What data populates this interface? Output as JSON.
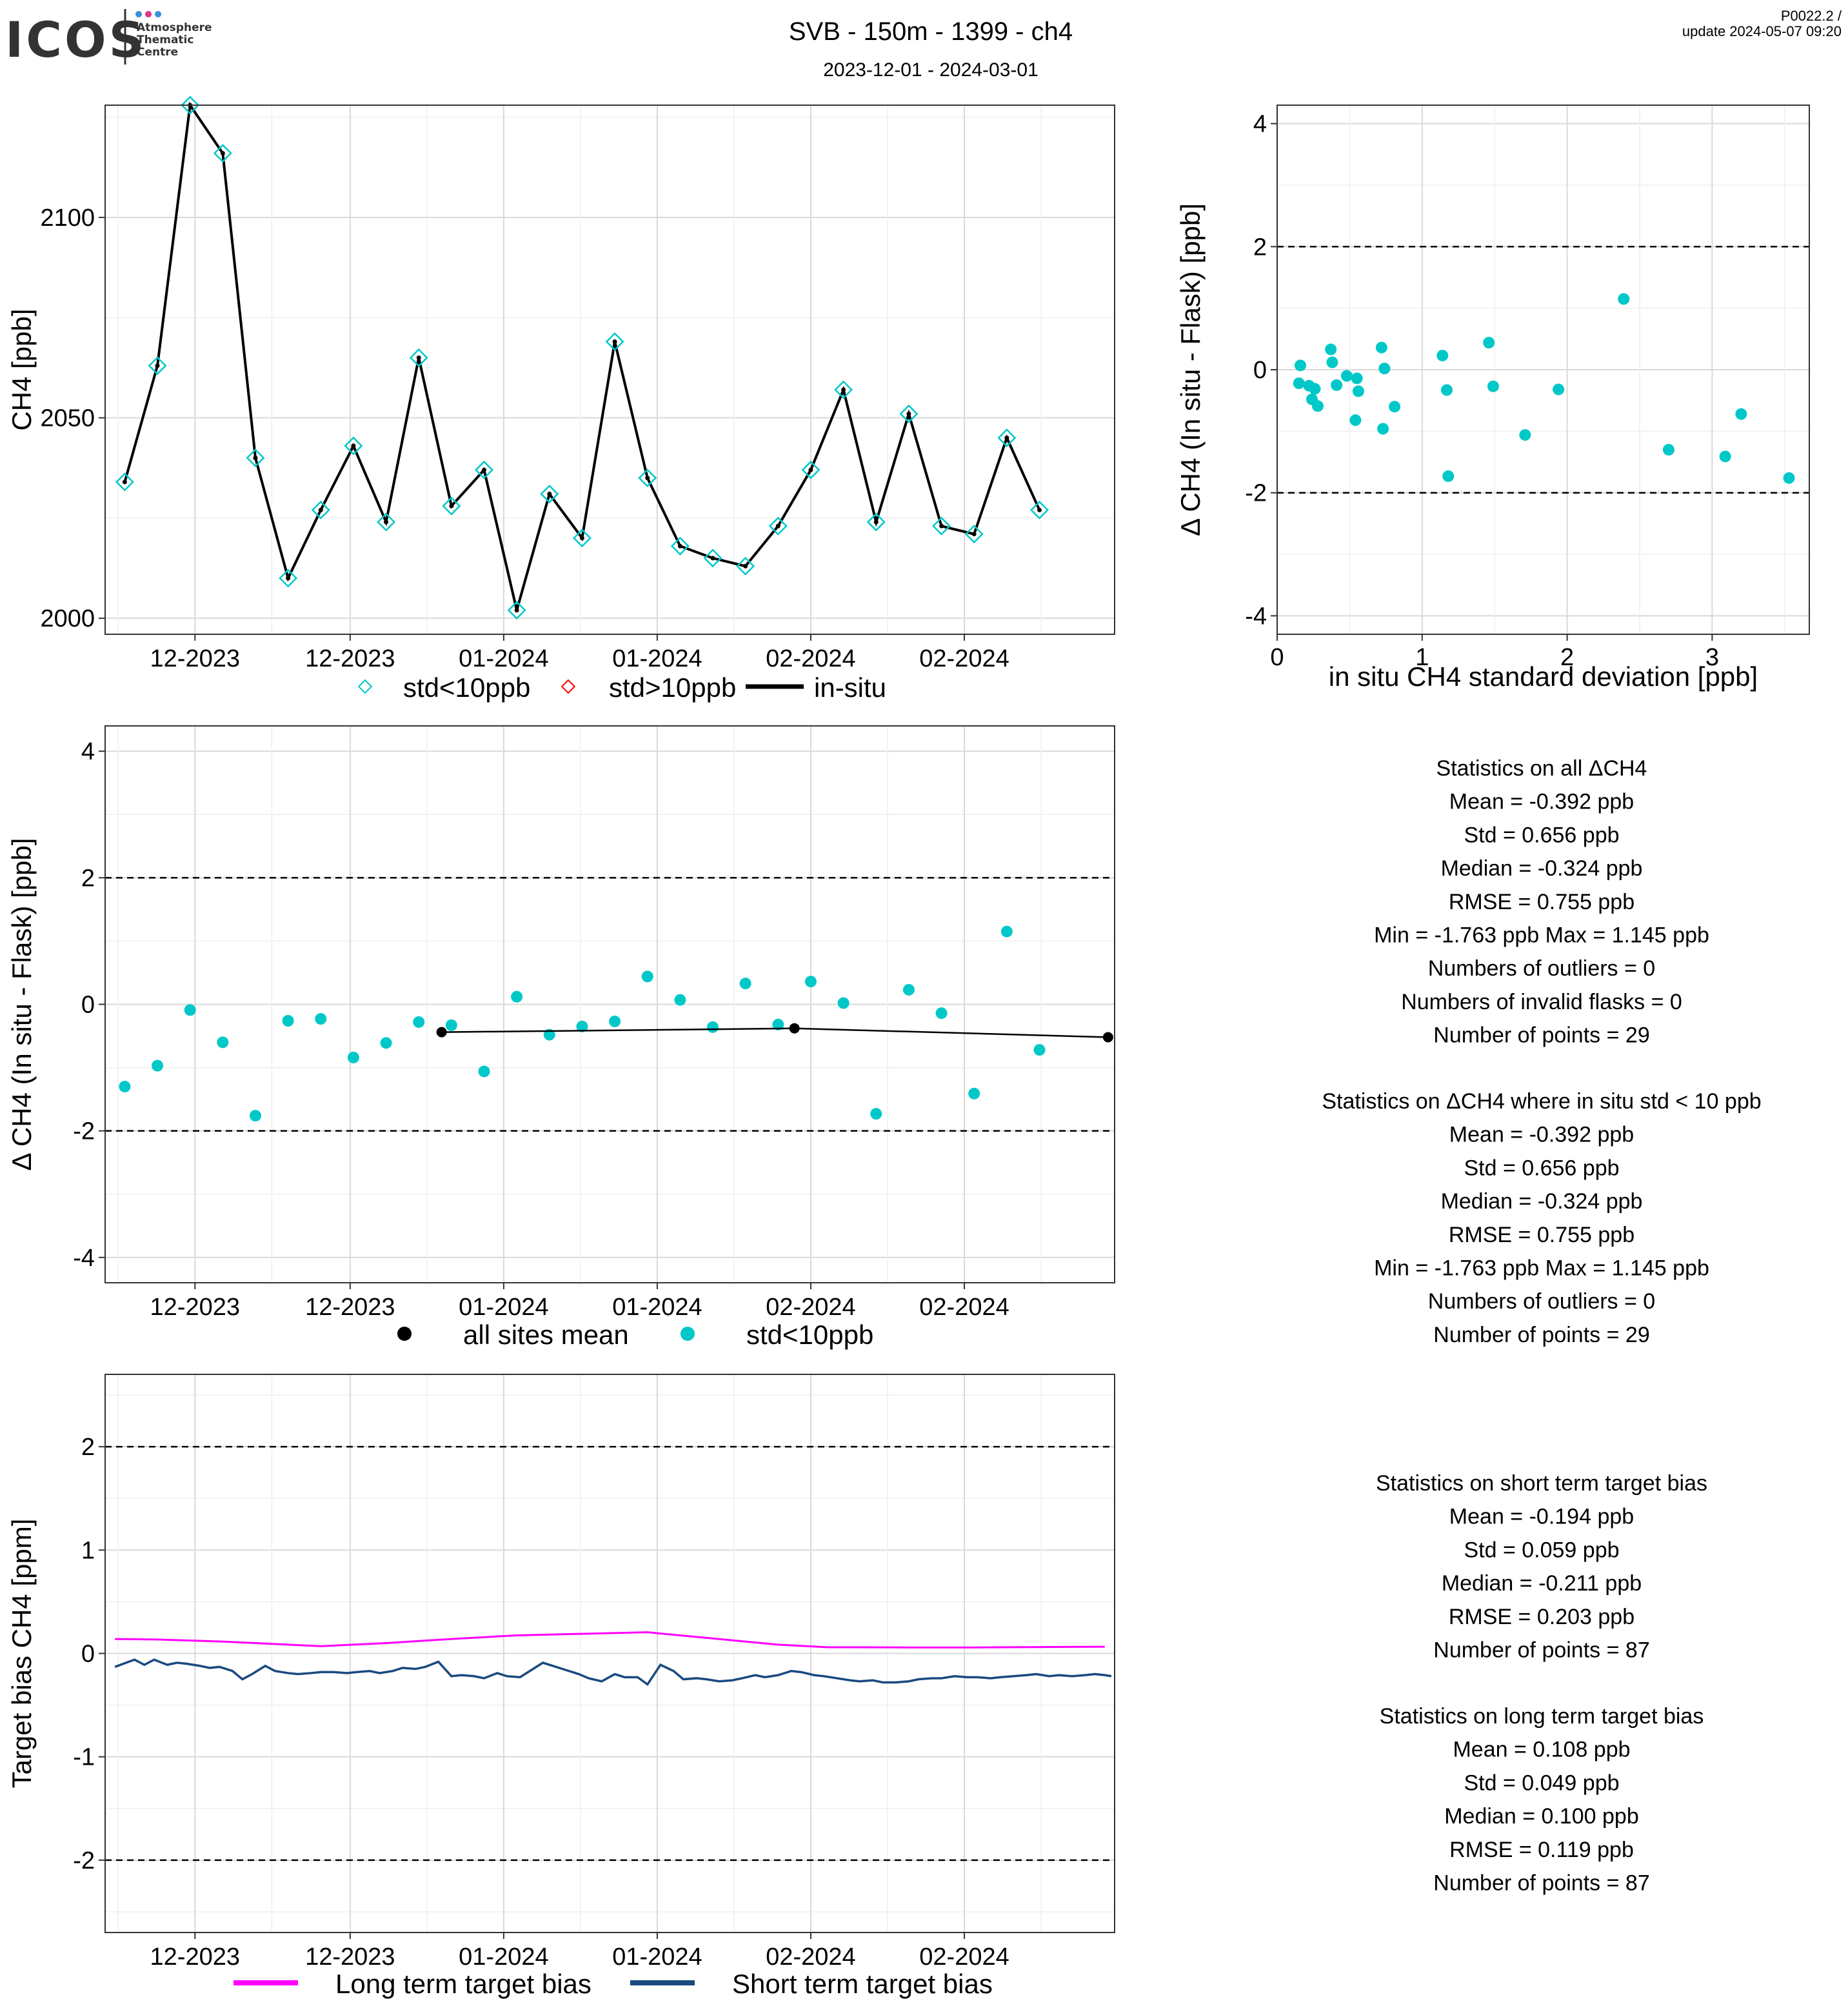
{
  "header": {
    "logo": "ICOS",
    "logo_sub": [
      "Atmosphere",
      "Thematic",
      "Centre"
    ],
    "title": "SVB - 150m - 1399 - ch4",
    "period": "2023-12-01 - 2024-03-01",
    "version": "P0022.2 /",
    "update": "update  2024-05-07 09:20"
  },
  "colors": {
    "cyan": "#00c8c8",
    "red": "#ff0000",
    "black": "#000000",
    "magenta": "#ff00ff",
    "navy": "#1a4a80",
    "grid_major": "#d9d9d9",
    "grid_minor": "#efefef"
  },
  "x_tick_labels": [
    "12-2023",
    "12-2023",
    "01-2024",
    "01-2024",
    "02-2024",
    "02-2024"
  ],
  "chart_data": [
    {
      "id": "ch4_timeseries",
      "type": "line",
      "ylabel": "CH4 [ppb]",
      "ylim": [
        1996,
        2128
      ],
      "yticks": [
        2000,
        2050,
        2100
      ],
      "xlim": [
        0.4,
        31.3
      ],
      "legend": [
        "std<10ppb",
        "std>10ppb",
        "in-situ"
      ],
      "legend_position": "bottom",
      "series": [
        {
          "name": "in-situ",
          "values": [
            2034,
            2063,
            2128,
            2116,
            2040,
            2010,
            2027,
            2043,
            2024,
            2065,
            2028,
            2037,
            2002,
            2031,
            2020,
            2069,
            2035,
            2018,
            2015,
            2013,
            2023,
            2037,
            2057,
            2024,
            2051,
            2023,
            2021,
            2045,
            2027
          ]
        },
        {
          "name": "std<10ppb",
          "values": [
            2034,
            2063,
            2128,
            2116,
            2040,
            2010,
            2027,
            2043,
            2024,
            2065,
            2028,
            2037,
            2002,
            2031,
            2020,
            2069,
            2035,
            2018,
            2015,
            2013,
            2023,
            2037,
            2057,
            2024,
            2051,
            2023,
            2021,
            2045,
            2027
          ]
        }
      ]
    },
    {
      "id": "delta_vs_std",
      "type": "scatter",
      "xlabel": "in situ CH4 standard deviation [ppb]",
      "ylabel": "Δ CH4 (In situ - Flask) [ppb]",
      "xlim": [
        0,
        3.67
      ],
      "ylim": [
        -4.3,
        4.3
      ],
      "xticks": [
        0,
        1,
        2,
        3
      ],
      "yticks": [
        -4,
        -2,
        0,
        2,
        4
      ],
      "hlines": [
        -2,
        2
      ],
      "series": [
        {
          "name": "std<10ppb",
          "x": [
            0.15,
            0.16,
            0.22,
            0.24,
            0.26,
            0.28,
            0.37,
            0.38,
            0.41,
            0.48,
            0.54,
            0.55,
            0.56,
            0.72,
            0.74,
            0.73,
            0.81,
            1.14,
            1.17,
            1.18,
            1.46,
            1.49,
            1.71,
            1.94,
            2.39,
            2.7,
            3.09,
            3.2,
            3.53
          ],
          "y": [
            -0.22,
            0.07,
            -0.26,
            -0.48,
            -0.31,
            -0.59,
            0.33,
            0.12,
            -0.25,
            -0.1,
            -0.82,
            -0.14,
            -0.35,
            0.36,
            0.02,
            -0.96,
            -0.6,
            0.23,
            -0.33,
            -1.73,
            0.44,
            -0.27,
            -1.06,
            -0.32,
            1.15,
            -1.3,
            -1.41,
            -0.72,
            -1.76
          ]
        }
      ]
    },
    {
      "id": "delta_timeseries",
      "type": "scatter",
      "ylabel": "Δ CH4 (In situ - Flask) [ppb]",
      "ylim": [
        -4.4,
        4.4
      ],
      "yticks": [
        -4,
        -2,
        0,
        2,
        4
      ],
      "xlim": [
        0.4,
        31.3
      ],
      "hlines": [
        -2,
        2
      ],
      "legend": [
        "all sites mean",
        "std<10ppb"
      ],
      "legend_position": "bottom",
      "series": [
        {
          "name": "std<10ppb",
          "x": [
            1,
            2,
            3,
            4,
            5,
            6,
            7,
            8,
            9,
            10,
            11,
            12,
            13,
            14,
            15,
            16,
            17,
            18,
            19,
            20,
            21,
            22,
            23,
            24,
            25,
            26,
            27,
            28,
            29
          ],
          "values": [
            -1.3,
            -0.97,
            -0.09,
            -0.6,
            -1.76,
            -0.26,
            -0.23,
            -0.84,
            -0.61,
            -0.28,
            -0.33,
            -1.06,
            0.12,
            -0.48,
            -0.35,
            -0.27,
            0.44,
            0.07,
            -0.36,
            0.33,
            -0.32,
            0.36,
            0.02,
            -1.73,
            0.23,
            -0.14,
            -1.41,
            1.15,
            -0.72
          ]
        },
        {
          "name": "all sites mean",
          "x": [
            10.7,
            21.5,
            31.1
          ],
          "values": [
            -0.44,
            -0.38,
            -0.52
          ]
        }
      ]
    },
    {
      "id": "target_bias",
      "type": "line",
      "ylabel": "Target bias CH4 [ppm]",
      "ylim": [
        -2.7,
        2.7
      ],
      "yticks": [
        -2,
        -1,
        0,
        1,
        2
      ],
      "xlim": [
        0.4,
        31.3
      ],
      "hlines": [
        -2,
        2
      ],
      "legend": [
        "Long term target bias",
        "Short term target bias"
      ],
      "legend_position": "bottom",
      "series": [
        {
          "name": "Long term target bias",
          "x": [
            0.7,
            2,
            4,
            6,
            7,
            9,
            11,
            13,
            15,
            17,
            19,
            21,
            22.5,
            25,
            27,
            29,
            31
          ],
          "values": [
            0.14,
            0.135,
            0.115,
            0.085,
            0.07,
            0.1,
            0.14,
            0.175,
            0.19,
            0.205,
            0.145,
            0.085,
            0.06,
            0.058,
            0.058,
            0.062,
            0.065
          ]
        },
        {
          "name": "Short term target bias",
          "x": [
            0.7,
            1.3,
            1.6,
            1.9,
            2.3,
            2.6,
            2.9,
            3.3,
            3.6,
            3.9,
            4.3,
            4.6,
            4.9,
            5.3,
            5.6,
            6.0,
            6.3,
            6.7,
            7.0,
            7.4,
            7.8,
            8.1,
            8.5,
            8.8,
            9.2,
            9.5,
            9.9,
            10.2,
            10.6,
            11.0,
            11.3,
            11.7,
            12.0,
            12.4,
            12.7,
            13.1,
            13.5,
            13.8,
            14.2,
            14.5,
            14.9,
            15.2,
            15.6,
            16.0,
            16.3,
            16.7,
            17.0,
            17.4,
            17.8,
            18.1,
            18.5,
            18.8,
            19.2,
            19.6,
            19.9,
            20.3,
            20.6,
            21.0,
            21.4,
            21.7,
            22.1,
            22.4,
            22.8,
            23.2,
            23.5,
            23.9,
            24.2,
            24.6,
            25.0,
            25.3,
            25.7,
            26.0,
            26.4,
            26.8,
            27.1,
            27.5,
            27.8,
            28.2,
            28.6,
            28.9,
            29.3,
            29.6,
            30.0,
            30.4,
            30.7,
            31.0,
            31.2
          ],
          "values": [
            -0.13,
            -0.06,
            -0.11,
            -0.06,
            -0.11,
            -0.09,
            -0.1,
            -0.12,
            -0.14,
            -0.13,
            -0.17,
            -0.25,
            -0.2,
            -0.12,
            -0.17,
            -0.19,
            -0.2,
            -0.19,
            -0.18,
            -0.18,
            -0.19,
            -0.18,
            -0.17,
            -0.19,
            -0.17,
            -0.14,
            -0.15,
            -0.13,
            -0.08,
            -0.22,
            -0.21,
            -0.22,
            -0.24,
            -0.19,
            -0.22,
            -0.23,
            -0.15,
            -0.09,
            -0.13,
            -0.16,
            -0.2,
            -0.24,
            -0.27,
            -0.2,
            -0.23,
            -0.23,
            -0.3,
            -0.11,
            -0.17,
            -0.25,
            -0.24,
            -0.25,
            -0.27,
            -0.26,
            -0.24,
            -0.21,
            -0.23,
            -0.21,
            -0.17,
            -0.18,
            -0.21,
            -0.22,
            -0.24,
            -0.26,
            -0.27,
            -0.26,
            -0.28,
            -0.28,
            -0.27,
            -0.25,
            -0.24,
            -0.24,
            -0.22,
            -0.23,
            -0.23,
            -0.24,
            -0.23,
            -0.22,
            -0.21,
            -0.2,
            -0.22,
            -0.21,
            -0.22,
            -0.21,
            -0.2,
            -0.21,
            -0.22
          ]
        }
      ]
    }
  ],
  "stats": {
    "all": [
      "Statistics on all ΔCH4",
      "Mean =  -0.392 ppb",
      "Std =  0.656 ppb",
      "Median =  -0.324 ppb",
      "RMSE =  0.755 ppb",
      "Min =  -1.763 ppb Max =  1.145 ppb",
      "Numbers of outliers =  0",
      "Numbers of invalid flasks =  0",
      "Number of points =  29"
    ],
    "filtered": [
      "Statistics on ΔCH4 where in situ std < 10 ppb",
      "Mean =  -0.392 ppb",
      "Std =  0.656 ppb",
      "Median =  -0.324 ppb",
      "RMSE =  0.755 ppb",
      "Min =  -1.763 ppb Max =  1.145 ppb",
      "Numbers of outliers =  0",
      "Number of points =  29"
    ],
    "short_term": [
      "Statistics on short term target bias",
      "Mean =  -0.194 ppb",
      "Std =  0.059 ppb",
      "Median =  -0.211 ppb",
      "RMSE =  0.203 ppb",
      "Number of points =  87"
    ],
    "long_term": [
      "Statistics on long term target bias",
      "Mean =  0.108 ppb",
      "Std =  0.049 ppb",
      "Median =  0.100 ppb",
      "RMSE =  0.119 ppb",
      "Number of points =  87"
    ]
  }
}
